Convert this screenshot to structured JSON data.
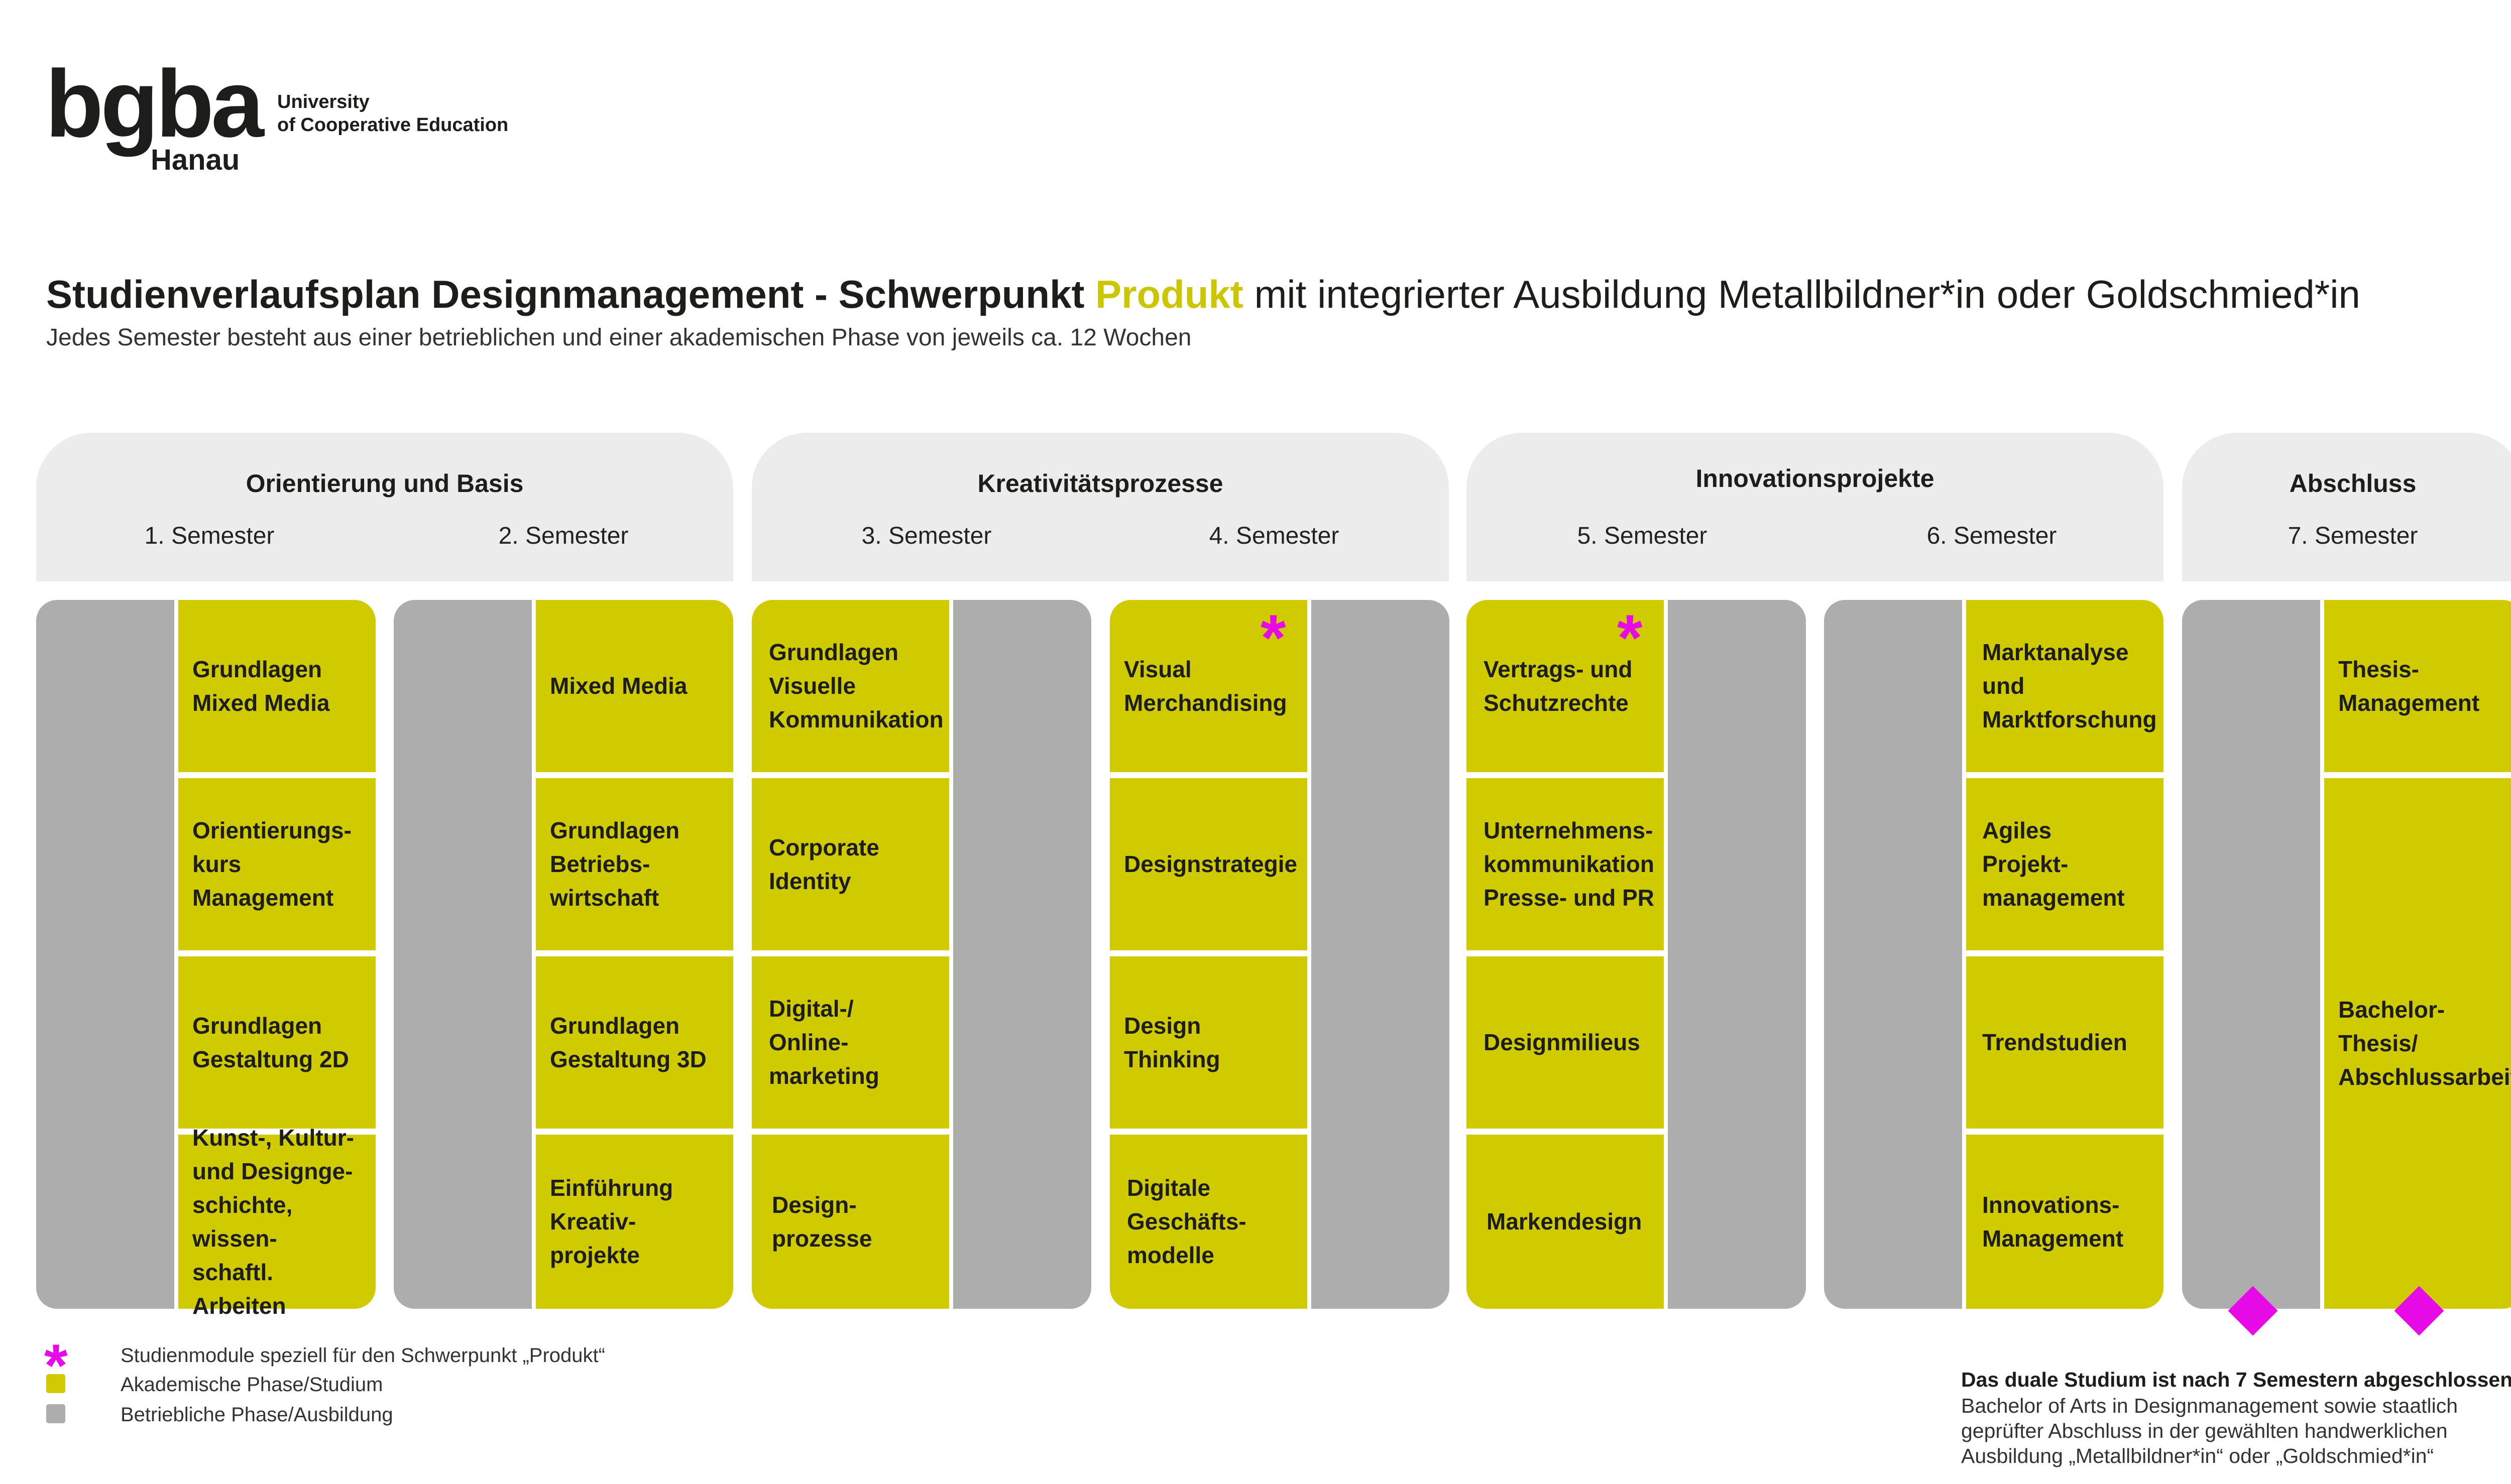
{
  "logo": {
    "wordmark": "bgba",
    "city": "Hanau",
    "subtitle_line1": "University",
    "subtitle_line2": "of Cooperative Education"
  },
  "title": {
    "part1": "Studienverlaufsplan Designmanagement - Schwerpunkt",
    "accent": "Produkt",
    "part2": "mit integrierter Ausbildung Metallbildner*in oder Goldschmied*in"
  },
  "subtitle": "Jedes Semester besteht aus einer betrieblichen und einer akademischen Phase von jeweils ca. 12 Wochen",
  "phases": [
    {
      "title": "Orientierung und Basis",
      "semesters": [
        "1. Semester",
        "2. Semester"
      ]
    },
    {
      "title": "Kreativitätsprozesse",
      "semesters": [
        "3. Semester",
        "4. Semester"
      ]
    },
    {
      "title": "Innovationsprojekte",
      "semesters": [
        "5. Semester",
        "6. Semester"
      ]
    },
    {
      "title": "Abschluss",
      "semesters": [
        "7. Semester"
      ]
    }
  ],
  "betrieblich_label": "Betriebliche Phase",
  "semesters": [
    {
      "modules": [
        "Grundlagen\nMixed Media",
        "Orientierungs-\nkurs\nManagement",
        "Grundlagen\nGestaltung 2D",
        "Kunst-, Kultur-\nund Designge-\nschichte, wissen-\nschaftl. Arbeiten"
      ]
    },
    {
      "modules": [
        "Mixed Media",
        "Grundlagen\nBetriebs-\nwirtschaft",
        "Grundlagen\nGestaltung 3D",
        "Einführung\nKreativ-\nprojekte"
      ]
    },
    {
      "modules": [
        "Grundlagen\nVisuelle\nKommunikation",
        "Corporate\nIdentity",
        "Digital-/\nOnline-\nmarketing",
        "Design-\nprozesse"
      ]
    },
    {
      "modules": [
        "Visual\nMerchandising",
        "Designstrategie",
        "Design\nThinking",
        "Digitale\nGeschäfts-\nmodelle"
      ]
    },
    {
      "modules": [
        "Vertrags- und\nSchutzrechte",
        "Unternehmens-\nkommunikation\nPresse- und PR",
        "Designmilieus",
        "Markendesign"
      ]
    },
    {
      "modules": [
        "Marktanalyse\nund\nMarktforschung",
        "Agiles\nProjekt-\nmanagement",
        "Trendstudien",
        "Innovations-\nManagement"
      ]
    },
    {
      "modules": [
        "Thesis-\nManagement",
        "Bachelor-\nThesis/\nAbschlussarbeit"
      ]
    }
  ],
  "legend": [
    {
      "label": "Studienmodule speziell für den Schwerpunkt „Produkt“",
      "color": "#e60ae6"
    },
    {
      "label": "Akademische Phase/Studium",
      "color": "#cfcb00"
    },
    {
      "label": "Betriebliche Phase/Ausbildung",
      "color": "#adadad"
    }
  ],
  "final": {
    "heading": "Das duale Studium ist nach 7 Semestern abgeschlossen:",
    "text": "Bachelor of Arts in Designmanagement sowie staatlich\ngeprüfter Abschluss in der gewählten handwerklichen\nAusbildung „Metallbildner*in“ oder „Goldschmied*in“"
  },
  "colors": {
    "academic": "#cfcb00",
    "operational": "#adadad",
    "accent_star": "#e60ae6",
    "header_bg": "#ececec",
    "title_accent": "#cbc600"
  }
}
